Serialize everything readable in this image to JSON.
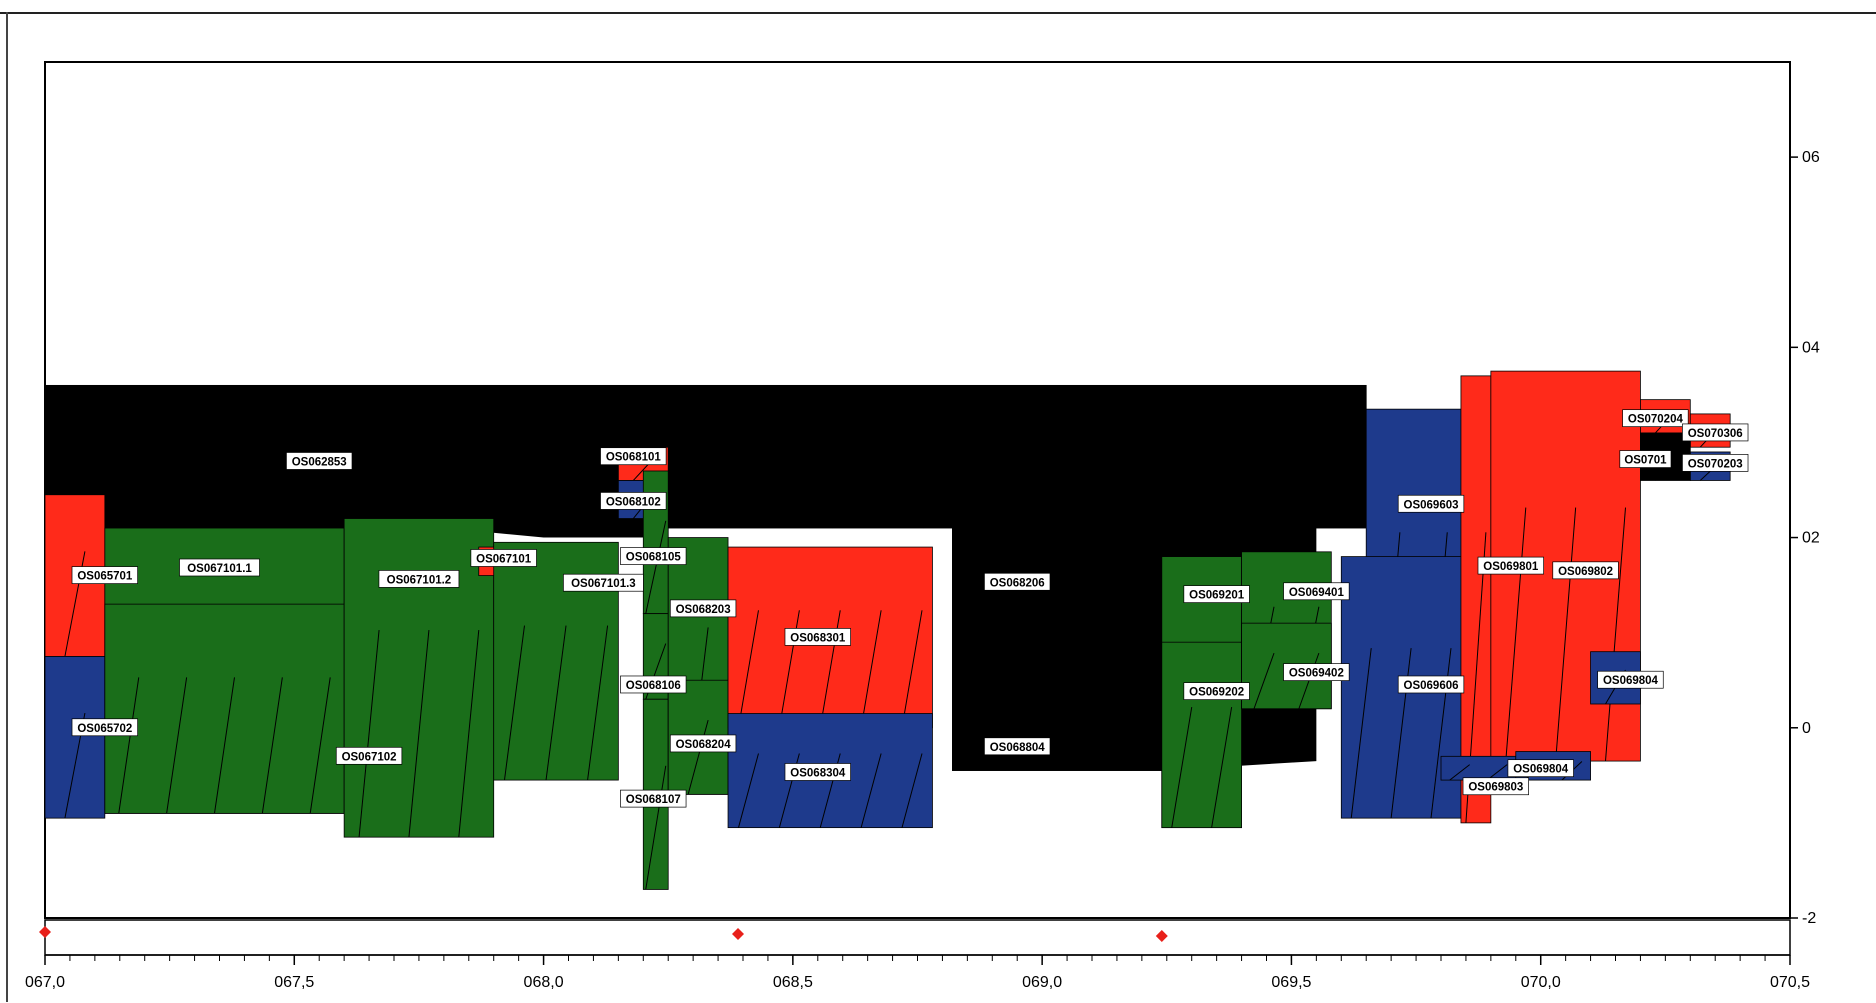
{
  "colors": {
    "black": "#000000",
    "green": "#1a6e1a",
    "red": "#ff2a1a",
    "blue": "#1e3a8c",
    "marker": "#e8201a"
  },
  "chart_data": {
    "type": "area",
    "xlim": [
      67.0,
      70.5
    ],
    "ylim": [
      -2,
      7
    ],
    "x_ticks": [
      {
        "value": 67.0,
        "label": "067,0"
      },
      {
        "value": 67.5,
        "label": "067,5"
      },
      {
        "value": 68.0,
        "label": "068,0"
      },
      {
        "value": 68.5,
        "label": "068,5"
      },
      {
        "value": 69.0,
        "label": "069,0"
      },
      {
        "value": 69.5,
        "label": "069,5"
      },
      {
        "value": 70.0,
        "label": "070,0"
      },
      {
        "value": 70.5,
        "label": "070,5"
      }
    ],
    "y_ticks": [
      {
        "value": -2,
        "label": "-2"
      },
      {
        "value": 0,
        "label": "0"
      },
      {
        "value": 2,
        "label": "02"
      },
      {
        "value": 4,
        "label": "04"
      },
      {
        "value": 6,
        "label": "06"
      }
    ],
    "markers_x": [
      67.0,
      68.39,
      69.24
    ],
    "black_top_profile": [
      [
        67.0,
        3.6
      ],
      [
        67.1,
        3.6
      ],
      [
        67.1,
        3.4
      ],
      [
        67.2,
        3.4
      ],
      [
        67.2,
        3.35
      ],
      [
        67.5,
        3.35
      ],
      [
        67.5,
        3.4
      ],
      [
        67.65,
        3.4
      ],
      [
        67.65,
        3.45
      ],
      [
        67.85,
        3.45
      ],
      [
        67.85,
        3.35
      ],
      [
        68.0,
        3.35
      ],
      [
        68.0,
        3.25
      ],
      [
        68.15,
        3.25
      ],
      [
        68.15,
        2.7
      ],
      [
        68.25,
        2.7
      ],
      [
        68.25,
        3.3
      ],
      [
        68.35,
        3.3
      ],
      [
        68.35,
        3.35
      ],
      [
        68.7,
        3.35
      ],
      [
        68.7,
        3.3
      ],
      [
        68.9,
        3.3
      ],
      [
        68.9,
        3.1
      ],
      [
        69.05,
        3.1
      ],
      [
        69.05,
        2.95
      ],
      [
        69.2,
        2.95
      ],
      [
        69.2,
        3.35
      ],
      [
        69.3,
        3.35
      ],
      [
        69.3,
        3.2
      ],
      [
        69.55,
        3.2
      ],
      [
        69.55,
        3.3
      ],
      [
        69.65,
        3.3
      ],
      [
        69.65,
        2.85
      ]
    ],
    "black_bottom_profile": [
      [
        69.65,
        2.6
      ],
      [
        69.55,
        2.6
      ],
      [
        69.55,
        -0.35
      ],
      [
        69.24,
        -0.45
      ],
      [
        69.0,
        -0.4
      ],
      [
        68.82,
        -0.3
      ],
      [
        68.82,
        2.7
      ],
      [
        68.25,
        2.7
      ],
      [
        68.25,
        2.0
      ],
      [
        68.0,
        2.0
      ],
      [
        67.6,
        2.2
      ],
      [
        67.2,
        2.1
      ],
      [
        67.0,
        2.1
      ]
    ],
    "segments": [
      {
        "id": "OS062853",
        "color": "black",
        "x": 67.0,
        "x2": 69.65,
        "y": 2.1,
        "y2": 3.6,
        "label_x": 67.55,
        "label_y": 2.8
      },
      {
        "id": "OS068206",
        "color": "black",
        "x": 68.82,
        "x2": 69.24,
        "y": -0.45,
        "y2": 2.7,
        "label_x": 68.95,
        "label_y": 1.53
      },
      {
        "id": "OS065701",
        "color": "red",
        "x": 67.0,
        "x2": 67.12,
        "y": 0.75,
        "y2": 2.45,
        "label_x": 67.12,
        "label_y": 1.6
      },
      {
        "id": "OS065702",
        "color": "blue",
        "x": 67.0,
        "x2": 67.12,
        "y": -0.95,
        "y2": 0.75,
        "label_x": 67.12,
        "label_y": 0.0
      },
      {
        "id": "OS067101.1",
        "color": "green",
        "x": 67.12,
        "x2": 67.6,
        "y": -0.9,
        "y2": 2.1,
        "label_x": 67.35,
        "label_y": 1.68
      },
      {
        "id": "OS067102",
        "color": "green",
        "x": 67.12,
        "x2": 67.6,
        "y": -0.9,
        "y2": 1.3,
        "label_x": 67.65,
        "label_y": -0.3
      },
      {
        "id": "OS067101.2",
        "color": "green",
        "x": 67.6,
        "x2": 67.9,
        "y": -1.15,
        "y2": 2.2,
        "label_x": 67.75,
        "label_y": 1.56
      },
      {
        "id": "OS067101",
        "color": "red",
        "x": 67.87,
        "x2": 68.0,
        "y": 1.6,
        "y2": 1.9,
        "label_x": 67.92,
        "label_y": 1.78
      },
      {
        "id": "OS067101.3",
        "color": "green",
        "x": 67.9,
        "x2": 68.15,
        "y": -0.55,
        "y2": 1.95,
        "label_x": 68.12,
        "label_y": 1.52
      },
      {
        "id": "OS068101",
        "color": "red",
        "x": 68.15,
        "x2": 68.25,
        "y": 2.6,
        "y2": 2.95,
        "label_x": 68.18,
        "label_y": 2.85
      },
      {
        "id": "OS068102",
        "color": "blue",
        "x": 68.15,
        "x2": 68.25,
        "y": 2.2,
        "y2": 2.6,
        "label_x": 68.18,
        "label_y": 2.38
      },
      {
        "id": "OS068105",
        "color": "green",
        "x": 68.2,
        "x2": 68.25,
        "y": 1.2,
        "y2": 2.7,
        "label_x": 68.22,
        "label_y": 1.8
      },
      {
        "id": "OS068106",
        "color": "green",
        "x": 68.2,
        "x2": 68.25,
        "y": 0.3,
        "y2": 1.2,
        "label_x": 68.22,
        "label_y": 0.45
      },
      {
        "id": "OS068107",
        "color": "green",
        "x": 68.2,
        "x2": 68.25,
        "y": -1.7,
        "y2": 0.3,
        "label_x": 68.22,
        "label_y": -0.75
      },
      {
        "id": "OS068203",
        "color": "green",
        "x": 68.25,
        "x2": 68.37,
        "y": -0.7,
        "y2": 2.0,
        "label_x": 68.32,
        "label_y": 1.25
      },
      {
        "id": "OS068204",
        "color": "green",
        "x": 68.25,
        "x2": 68.37,
        "y": -0.7,
        "y2": 0.5,
        "label_x": 68.32,
        "label_y": -0.17
      },
      {
        "id": "OS068301",
        "color": "red",
        "x": 68.37,
        "x2": 68.78,
        "y": 0.0,
        "y2": 1.9,
        "label_x": 68.55,
        "label_y": 0.95
      },
      {
        "id": "OS068304",
        "color": "blue",
        "x": 68.37,
        "x2": 68.78,
        "y": -1.05,
        "y2": 0.15,
        "label_x": 68.55,
        "label_y": -0.47
      },
      {
        "id": "OS068804",
        "color": "black",
        "x": 68.82,
        "x2": 69.1,
        "y": -0.4,
        "y2": 0.0,
        "label_x": 68.95,
        "label_y": -0.2
      },
      {
        "id": "OS069201",
        "color": "green",
        "x": 69.24,
        "x2": 69.4,
        "y": -1.05,
        "y2": 1.8,
        "label_x": 69.35,
        "label_y": 1.4
      },
      {
        "id": "OS069202",
        "color": "green",
        "x": 69.24,
        "x2": 69.4,
        "y": -1.05,
        "y2": 0.9,
        "label_x": 69.35,
        "label_y": 0.38
      },
      {
        "id": "OS069401",
        "color": "green",
        "x": 69.4,
        "x2": 69.58,
        "y": 0.2,
        "y2": 1.85,
        "label_x": 69.55,
        "label_y": 1.43
      },
      {
        "id": "OS069402",
        "color": "green",
        "x": 69.4,
        "x2": 69.58,
        "y": 0.2,
        "y2": 1.1,
        "label_x": 69.55,
        "label_y": 0.58
      },
      {
        "id": "OS069603",
        "color": "blue",
        "x": 69.65,
        "x2": 69.84,
        "y": -0.35,
        "y2": 3.35,
        "label_x": 69.78,
        "label_y": 2.35
      },
      {
        "id": "OS069606",
        "color": "blue",
        "x": 69.6,
        "x2": 69.84,
        "y": -0.95,
        "y2": 1.8,
        "label_x": 69.78,
        "label_y": 0.45
      },
      {
        "id": "OS069801",
        "color": "red",
        "x": 69.84,
        "x2": 69.9,
        "y": -1.0,
        "y2": 3.7,
        "label_x": 69.94,
        "label_y": 1.7
      },
      {
        "id": "OS069802",
        "color": "red",
        "x": 69.9,
        "x2": 70.2,
        "y": -0.35,
        "y2": 3.75,
        "label_x": 70.09,
        "label_y": 1.65
      },
      {
        "id": "OS069803",
        "color": "blue",
        "x": 69.8,
        "x2": 69.95,
        "y": -0.55,
        "y2": -0.3,
        "label_x": 69.91,
        "label_y": -0.62
      },
      {
        "id": "OS069804",
        "color": "blue",
        "x": 69.95,
        "x2": 70.1,
        "y": -0.55,
        "y2": -0.25,
        "label_x": 70.0,
        "label_y": -0.43
      },
      {
        "id": "OS069804",
        "color": "blue",
        "x": 70.1,
        "x2": 70.2,
        "y": 0.25,
        "y2": 0.8,
        "label_x": 70.18,
        "label_y": 0.5
      },
      {
        "id": "OS070204",
        "color": "red",
        "x": 70.2,
        "x2": 70.3,
        "y": 3.1,
        "y2": 3.45,
        "label_x": 70.23,
        "label_y": 3.25
      },
      {
        "id": "OS070306",
        "color": "red",
        "x": 70.3,
        "x2": 70.38,
        "y": 2.95,
        "y2": 3.3,
        "label_x": 70.35,
        "label_y": 3.1
      },
      {
        "id": "OS070203",
        "color": "blue",
        "x": 70.3,
        "x2": 70.38,
        "y": 2.6,
        "y2": 2.9,
        "label_x": 70.35,
        "label_y": 2.78
      },
      {
        "id": "OS0701",
        "color": "black",
        "x": 70.2,
        "x2": 70.3,
        "y": 2.6,
        "y2": 3.1,
        "label_x": 70.21,
        "label_y": 2.82
      }
    ]
  }
}
